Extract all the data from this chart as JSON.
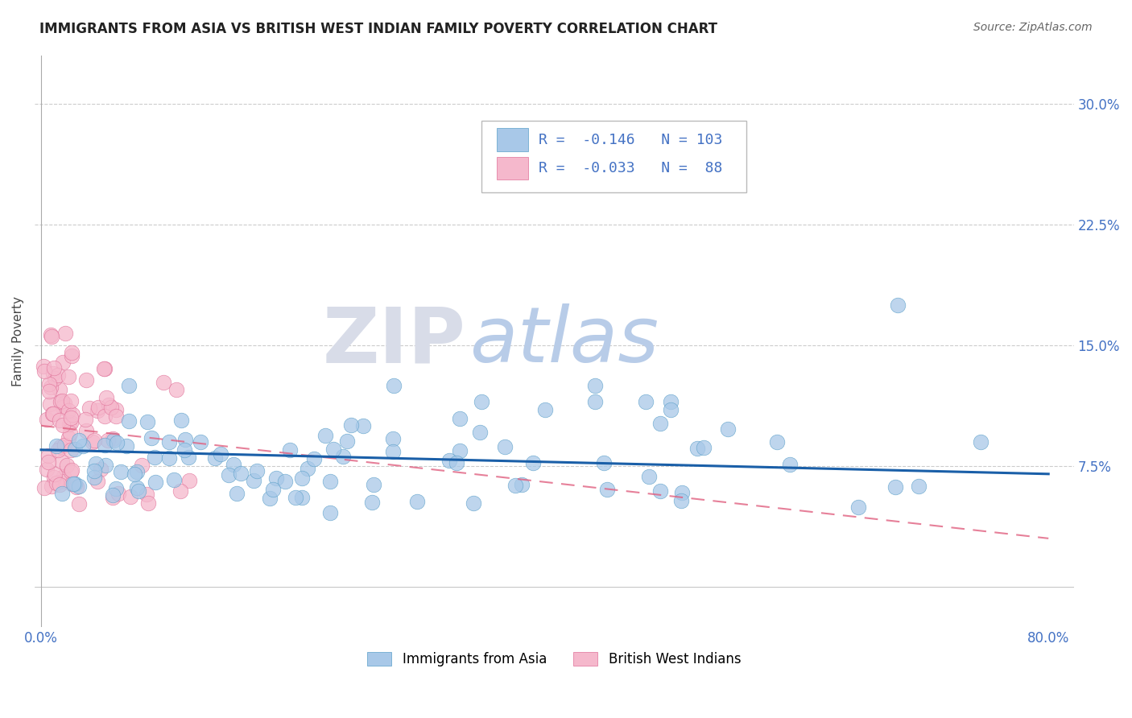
{
  "title": "IMMIGRANTS FROM ASIA VS BRITISH WEST INDIAN FAMILY POVERTY CORRELATION CHART",
  "source": "Source: ZipAtlas.com",
  "ylabel": "Family Poverty",
  "xlim": [
    -0.005,
    0.82
  ],
  "ylim": [
    -0.025,
    0.33
  ],
  "yticks": [
    0.075,
    0.15,
    0.225,
    0.3
  ],
  "ytick_labels": [
    "7.5%",
    "15.0%",
    "22.5%",
    "30.0%"
  ],
  "xtick_vals": [
    0.0,
    0.8
  ],
  "xtick_labels": [
    "0.0%",
    "80.0%"
  ],
  "legend_R1": "-0.146",
  "legend_N1": "103",
  "legend_R2": "-0.033",
  "legend_N2": "88",
  "blue_color": "#a8c8e8",
  "blue_edge_color": "#5a9fc8",
  "pink_color": "#f5b8cc",
  "pink_edge_color": "#e07098",
  "blue_line_color": "#1a5fa8",
  "pink_line_color": "#e06080",
  "watermark_zip_color": "#d8dce8",
  "watermark_atlas_color": "#b8cce8",
  "background_color": "#ffffff",
  "title_fontsize": 12,
  "legend_fontsize": 13,
  "seed": 42,
  "n_asia": 103,
  "n_bwi": 88
}
